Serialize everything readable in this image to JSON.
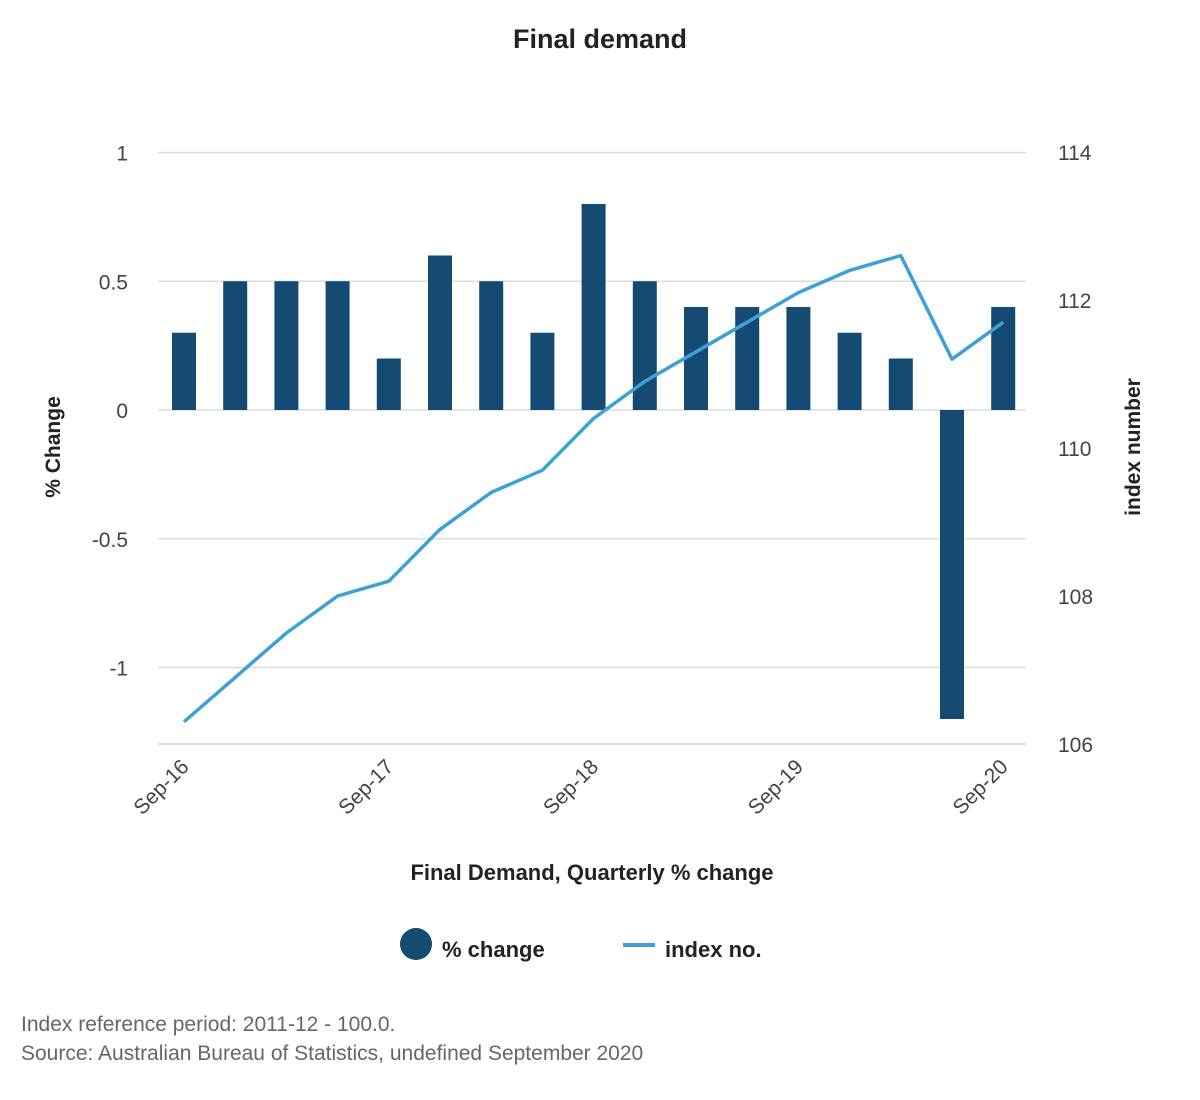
{
  "chart_data": {
    "type": "bar",
    "title": "Final demand",
    "xlabel": "Final Demand, Quarterly % change",
    "ylabel": "% Change",
    "y2label": "index number",
    "ylim": [
      -1.3,
      1
    ],
    "y2lim": [
      106,
      114
    ],
    "yticks": [
      1,
      0.5,
      0,
      -0.5,
      -1
    ],
    "yticklabels": [
      "1",
      "0.5",
      "0",
      "-0.5",
      "-1"
    ],
    "y2ticks": [
      114,
      112,
      110,
      108,
      106
    ],
    "y2ticklabels": [
      "114",
      "112",
      "110",
      "108",
      "106"
    ],
    "categories": [
      "Sep-16",
      "Dec-16",
      "Mar-17",
      "Jun-17",
      "Sep-17",
      "Dec-17",
      "Mar-18",
      "Jun-18",
      "Sep-18",
      "Dec-18",
      "Mar-19",
      "Jun-19",
      "Sep-19",
      "Dec-19",
      "Mar-20",
      "Jun-20",
      "Sep-20"
    ],
    "xtick_labels": [
      "Sep-16",
      "Sep-17",
      "Sep-18",
      "Sep-19",
      "Sep-20"
    ],
    "grid": true,
    "legend_position": "bottom",
    "series": [
      {
        "name": "% change",
        "type": "bar",
        "axis": "left",
        "color": "#154a72",
        "values": [
          0.3,
          0.5,
          0.5,
          0.5,
          0.2,
          0.6,
          0.5,
          0.3,
          0.8,
          0.5,
          0.4,
          0.4,
          0.4,
          0.3,
          0.2,
          -1.2,
          0.4
        ]
      },
      {
        "name": "index no.",
        "type": "line",
        "axis": "right",
        "color": "#3fa0d8",
        "values": [
          106.3,
          106.9,
          107.5,
          108.0,
          108.2,
          108.9,
          109.4,
          109.7,
          110.4,
          110.9,
          111.3,
          111.7,
          112.1,
          112.4,
          112.6,
          111.2,
          111.7
        ]
      }
    ]
  },
  "footnotes": {
    "line1": "Index reference period: 2011-12 - 100.0.",
    "line2": "Source: Australian Bureau of Statistics, undefined September 2020"
  }
}
